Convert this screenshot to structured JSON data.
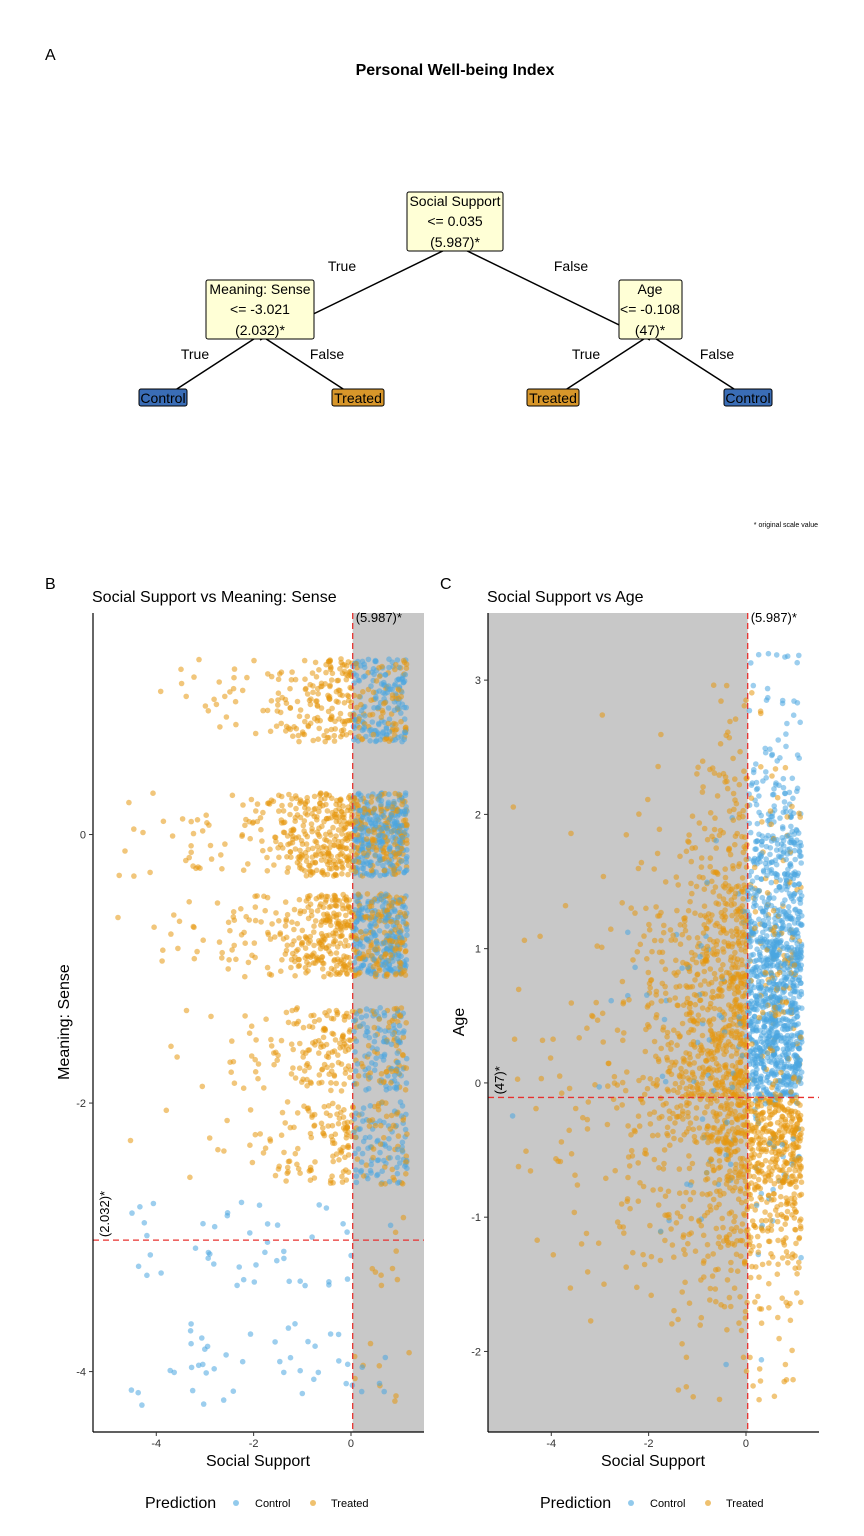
{
  "figure": {
    "panel_a_label": "A",
    "panel_b_label": "B",
    "panel_c_label": "C",
    "footnote": "* original scale value",
    "colors": {
      "control": "#4aa6e0",
      "treated": "#e5970f",
      "control_leaf": "#3a6db6",
      "treated_leaf": "#d7962a",
      "node_fill": "#ffffd6",
      "shade": "#c8c8c8",
      "threshold": "#e8312f"
    }
  },
  "chart_data": [
    {
      "type": "tree",
      "title": "Personal Well-being Index",
      "nodes": [
        {
          "id": "root",
          "lines": [
            "Social Support",
            "<= 0.035",
            "(5.987)*"
          ]
        },
        {
          "id": "left",
          "lines": [
            "Meaning: Sense",
            "<= -3.021",
            "(2.032)*"
          ]
        },
        {
          "id": "right",
          "lines": [
            "Age",
            "<= -0.108",
            "(47)*"
          ]
        }
      ],
      "leaves": [
        "Control",
        "Treated",
        "Treated",
        "Control"
      ],
      "edge_labels": {
        "root_left": "True",
        "root_right": "False",
        "left_left": "True",
        "left_right": "False",
        "right_left": "True",
        "right_right": "False"
      }
    },
    {
      "type": "scatter",
      "title": "Social Support vs Meaning: Sense",
      "xlabel": "Social Support",
      "ylabel": "Meaning: Sense",
      "xlim": [
        -5.3,
        1.5
      ],
      "ylim": [
        -4.45,
        1.65
      ],
      "xticks": [
        -4,
        -2,
        0
      ],
      "yticks": [
        -4,
        -2,
        0
      ],
      "x_threshold": 0.035,
      "y_threshold": -3.021,
      "x_threshold_label": "(5.987)*",
      "y_threshold_label": "(2.032)*",
      "shaded_region": "x > 0.035",
      "y_levels": [
        1.0,
        0.0,
        -0.75,
        -1.6,
        -2.3
      ],
      "low_levels": [
        -3.05,
        -3.95
      ],
      "n_points_approx": 4000
    },
    {
      "type": "scatter",
      "title": "Social Support vs Age",
      "xlabel": "Social Support",
      "ylabel": "Age",
      "xlim": [
        -5.3,
        1.5
      ],
      "ylim": [
        -2.6,
        3.5
      ],
      "xticks": [
        -4,
        -2,
        0
      ],
      "yticks": [
        -2,
        -1,
        0,
        1,
        2,
        3
      ],
      "x_threshold": 0.035,
      "y_threshold": -0.108,
      "x_threshold_label": "(5.987)*",
      "y_threshold_label": "(47)*",
      "shaded_region": "x < 0.035",
      "n_points_approx": 4000
    }
  ],
  "legend": {
    "title": "Prediction",
    "items": [
      "Control",
      "Treated"
    ]
  }
}
